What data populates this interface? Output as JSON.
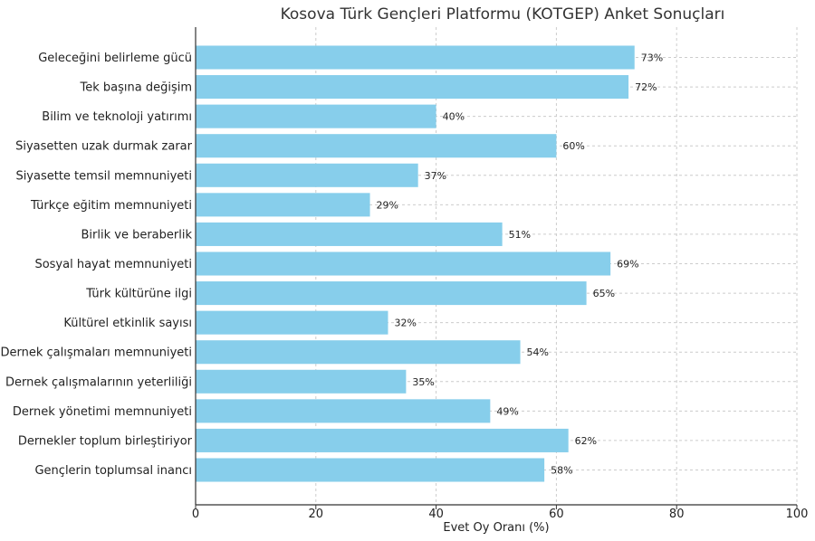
{
  "chart_data": {
    "type": "bar",
    "orientation": "horizontal",
    "title": "Kosova Türk Gençleri Platformu (KOTGEP) Anket Sonuçları",
    "xlabel": "Evet Oy Oranı (%)",
    "ylabel": "",
    "xlim": [
      0,
      100
    ],
    "xticks": [
      0,
      20,
      40,
      60,
      80,
      100
    ],
    "grid": true,
    "bar_color": "#87ceeb",
    "categories": [
      "Geleceğini belirleme gücü",
      "Tek başına değişim",
      "Bilim ve teknoloji yatırımı",
      "Siyasetten uzak durmak zarar",
      "Siyasette temsil memnuniyeti",
      "Türkçe eğitim memnuniyeti",
      "Birlik ve beraberlik",
      "Sosyal hayat memnuniyeti",
      "Türk kültürüne ilgi",
      "Kültürel etkinlik sayısı",
      "Dernek çalışmaları memnuniyeti",
      "Dernek çalışmalarının yeterliliği",
      "Dernek yönetimi memnuniyeti",
      "Dernekler toplum birleştiriyor",
      "Gençlerin toplumsal inancı"
    ],
    "values": [
      73,
      72,
      40,
      60,
      37,
      29,
      51,
      69,
      65,
      32,
      54,
      35,
      49,
      62,
      58
    ],
    "value_suffix": "%"
  }
}
